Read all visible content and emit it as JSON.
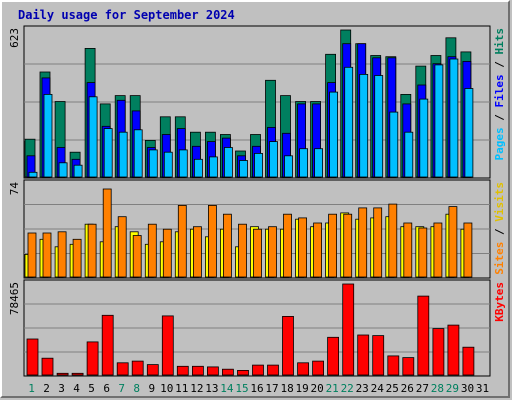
{
  "window": {
    "title": "Daily usage for September 2024"
  },
  "chart_data": [
    {
      "type": "bar",
      "panel": "top",
      "categories": [
        "1",
        "2",
        "3",
        "4",
        "5",
        "6",
        "7",
        "8",
        "9",
        "10",
        "11",
        "12",
        "13",
        "14",
        "15",
        "16",
        "17",
        "18",
        "19",
        "20",
        "21",
        "22",
        "23",
        "24",
        "25",
        "26",
        "27",
        "28",
        "29",
        "30",
        "31"
      ],
      "ymax_label": "623",
      "ylim": [
        0,
        623
      ],
      "series": [
        {
          "name": "Hits",
          "color": "#007f5f",
          "values": [
            160,
            445,
            320,
            105,
            545,
            310,
            345,
            345,
            155,
            255,
            255,
            190,
            190,
            180,
            110,
            180,
            410,
            345,
            320,
            320,
            520,
            623,
            565,
            515,
            510,
            350,
            470,
            515,
            590,
            530,
            null
          ]
        },
        {
          "name": "Files",
          "color": "#0000ff",
          "values": [
            90,
            420,
            125,
            75,
            400,
            215,
            325,
            280,
            125,
            180,
            205,
            130,
            150,
            165,
            90,
            130,
            210,
            185,
            310,
            310,
            400,
            565,
            565,
            505,
            505,
            310,
            390,
            480,
            510,
            490,
            null
          ]
        },
        {
          "name": "Pages",
          "color": "#00bfff",
          "values": [
            20,
            350,
            60,
            50,
            340,
            205,
            190,
            200,
            115,
            105,
            115,
            75,
            85,
            125,
            70,
            100,
            150,
            90,
            120,
            120,
            360,
            465,
            435,
            430,
            275,
            190,
            330,
            475,
            500,
            375,
            null
          ]
        }
      ]
    },
    {
      "type": "bar",
      "panel": "middle",
      "categories": [
        "1",
        "2",
        "3",
        "4",
        "5",
        "6",
        "7",
        "8",
        "9",
        "10",
        "11",
        "12",
        "13",
        "14",
        "15",
        "16",
        "17",
        "18",
        "19",
        "20",
        "21",
        "22",
        "23",
        "24",
        "25",
        "26",
        "27",
        "28",
        "29",
        "30",
        "31"
      ],
      "ymax_label": "74",
      "ylim": [
        0,
        74
      ],
      "series": [
        {
          "name": "Visits",
          "color": "#ffff00",
          "values": [
            18,
            30,
            24,
            26,
            42,
            28,
            40,
            36,
            26,
            28,
            36,
            38,
            32,
            38,
            24,
            40,
            38,
            38,
            46,
            40,
            43,
            51,
            46,
            47,
            48,
            40,
            40,
            40,
            50,
            38,
            null
          ]
        },
        {
          "name": "Sites",
          "color": "#ff8000",
          "values": [
            35,
            35,
            36,
            30,
            42,
            70,
            48,
            33,
            42,
            38,
            57,
            40,
            57,
            50,
            42,
            38,
            40,
            50,
            47,
            43,
            50,
            50,
            55,
            55,
            58,
            43,
            39,
            43,
            56,
            43,
            null
          ]
        }
      ]
    },
    {
      "type": "bar",
      "panel": "bottom",
      "categories": [
        "1",
        "2",
        "3",
        "4",
        "5",
        "6",
        "7",
        "8",
        "9",
        "10",
        "11",
        "12",
        "13",
        "14",
        "15",
        "16",
        "17",
        "18",
        "19",
        "20",
        "21",
        "22",
        "23",
        "24",
        "25",
        "26",
        "27",
        "28",
        "29",
        "30",
        "31"
      ],
      "ymax_label": "78465",
      "ylim": [
        0,
        78465
      ],
      "series": [
        {
          "name": "KBytes",
          "color": "#ff0000",
          "values": [
            31000,
            14500,
            1500,
            1500,
            28500,
            51500,
            10500,
            12000,
            9000,
            51000,
            7500,
            7500,
            7000,
            5000,
            4000,
            8500,
            8500,
            50500,
            10500,
            12000,
            32500,
            78465,
            34500,
            34000,
            16500,
            15000,
            68000,
            40000,
            43000,
            24000,
            null
          ]
        }
      ]
    }
  ],
  "axis": {
    "days": [
      "1",
      "2",
      "3",
      "4",
      "5",
      "6",
      "7",
      "8",
      "9",
      "10",
      "11",
      "12",
      "13",
      "14",
      "15",
      "16",
      "17",
      "18",
      "19",
      "20",
      "21",
      "22",
      "23",
      "24",
      "25",
      "26",
      "27",
      "28",
      "29",
      "30",
      "31"
    ],
    "weekend_color": "#00805f",
    "weekday_color": "#000000",
    "weekend_days": [
      1,
      7,
      8,
      14,
      15,
      21,
      22,
      28,
      29
    ]
  },
  "right_labels": {
    "top": [
      {
        "text": "Pages",
        "color": "#00bfff"
      },
      {
        "text": " / ",
        "color": "#000000"
      },
      {
        "text": "Files",
        "color": "#0000ff"
      },
      {
        "text": " / ",
        "color": "#000000"
      },
      {
        "text": "Hits",
        "color": "#007f5f"
      }
    ],
    "middle": [
      {
        "text": "Sites",
        "color": "#ff8000"
      },
      {
        "text": " / ",
        "color": "#000000"
      },
      {
        "text": "Visits",
        "color": "#e0c000"
      }
    ],
    "bottom": [
      {
        "text": "KBytes",
        "color": "#ff0000"
      }
    ]
  }
}
